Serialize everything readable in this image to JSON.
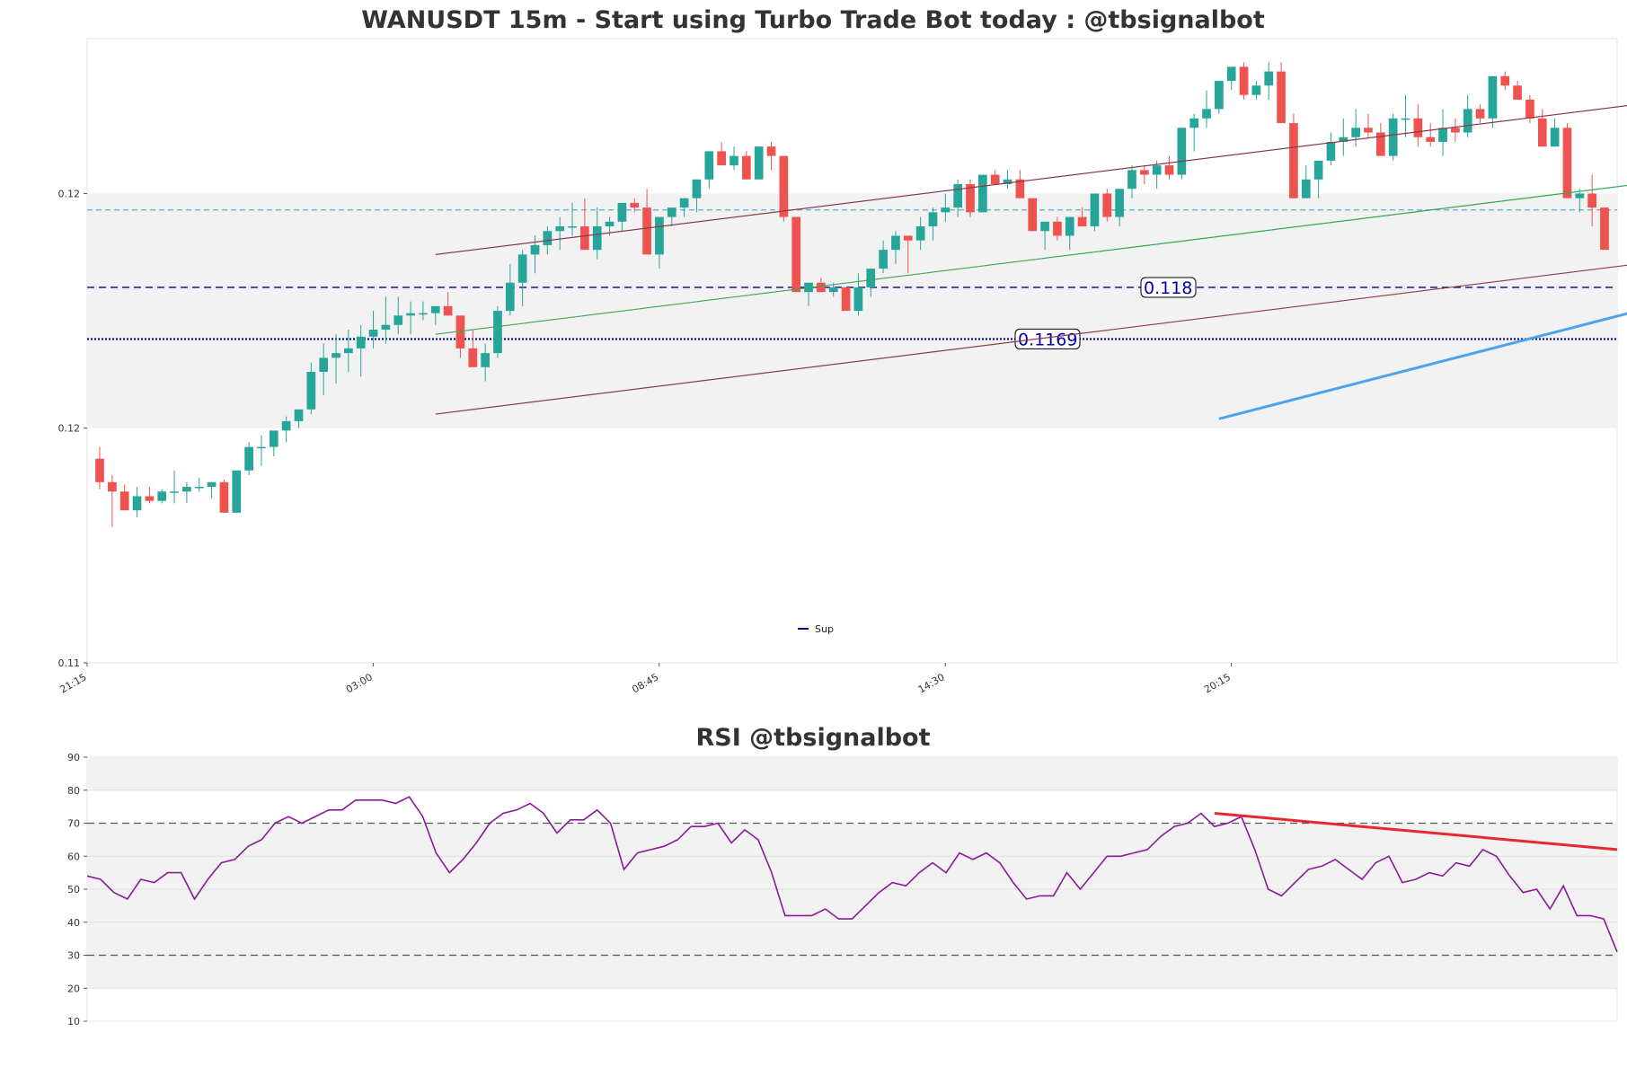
{
  "colors": {
    "bull": "#26a69a",
    "bear": "#ef5350",
    "channel": "#8b3a4a",
    "mid_line": "#3aa655",
    "trend_up": "#4ea3ea",
    "trend_down": "#e8282e",
    "support": "#000099",
    "level_cyan": "#5aaed0",
    "rsi_line": "#8b1a9b",
    "zone_fill": "#f2f2f2"
  },
  "chart_data": [
    {
      "type": "candlestick",
      "title": "WANUSDT 15m - Start using Turbo Trade Bot today : @tbsignalbot",
      "x_tick_labels": [
        "21:15",
        "03:00",
        "08:45",
        "14:30",
        "20:15"
      ],
      "y_tick_labels": [
        "0.12",
        "0.12",
        "0.11"
      ],
      "ylim": [
        0.11,
        0.1233
      ],
      "y_tick_values": [
        0.12,
        0.115,
        0.11
      ],
      "grid": false,
      "shaded_zone": [
        0.115,
        0.12
      ],
      "candles_ohlc": [
        [
          0.11435,
          0.1146,
          0.1137,
          0.11385
        ],
        [
          0.11385,
          0.114,
          0.1129,
          0.11365
        ],
        [
          0.11365,
          0.1138,
          0.1133,
          0.11325
        ],
        [
          0.11325,
          0.11375,
          0.1131,
          0.11355
        ],
        [
          0.11355,
          0.11375,
          0.1134,
          0.11345
        ],
        [
          0.11345,
          0.1137,
          0.1134,
          0.11365
        ],
        [
          0.11365,
          0.1141,
          0.1134,
          0.11365
        ],
        [
          0.11365,
          0.11385,
          0.1134,
          0.11375
        ],
        [
          0.11375,
          0.11395,
          0.11365,
          0.11375
        ],
        [
          0.11375,
          0.11385,
          0.1135,
          0.11385
        ],
        [
          0.11385,
          0.1139,
          0.1132,
          0.1132
        ],
        [
          0.1132,
          0.114,
          0.1132,
          0.1141
        ],
        [
          0.1141,
          0.1147,
          0.114,
          0.1146
        ],
        [
          0.1146,
          0.11485,
          0.1142,
          0.1146
        ],
        [
          0.1146,
          0.1149,
          0.1144,
          0.11495
        ],
        [
          0.11495,
          0.11525,
          0.1147,
          0.11515
        ],
        [
          0.11515,
          0.1154,
          0.115,
          0.1154
        ],
        [
          0.1154,
          0.1164,
          0.1153,
          0.1162
        ],
        [
          0.1162,
          0.1168,
          0.1157,
          0.1165
        ],
        [
          0.1165,
          0.117,
          0.11595,
          0.1166
        ],
        [
          0.1166,
          0.1171,
          0.1162,
          0.1167
        ],
        [
          0.1167,
          0.1172,
          0.1161,
          0.11695
        ],
        [
          0.11695,
          0.1175,
          0.1167,
          0.1171
        ],
        [
          0.1171,
          0.1178,
          0.1168,
          0.1172
        ],
        [
          0.1172,
          0.1178,
          0.117,
          0.1174
        ],
        [
          0.1174,
          0.1177,
          0.117,
          0.11745
        ],
        [
          0.11745,
          0.1177,
          0.1173,
          0.11745
        ],
        [
          0.11745,
          0.1176,
          0.1172,
          0.1176
        ],
        [
          0.1176,
          0.1179,
          0.1174,
          0.1174
        ],
        [
          0.1174,
          0.1174,
          0.1165,
          0.1167
        ],
        [
          0.1167,
          0.1171,
          0.1164,
          0.1163
        ],
        [
          0.1163,
          0.1168,
          0.116,
          0.1166
        ],
        [
          0.1166,
          0.1176,
          0.1165,
          0.1175
        ],
        [
          0.1175,
          0.1185,
          0.1174,
          0.1181
        ],
        [
          0.1181,
          0.1188,
          0.1176,
          0.1187
        ],
        [
          0.1187,
          0.1191,
          0.1183,
          0.1189
        ],
        [
          0.1189,
          0.1193,
          0.1187,
          0.1192
        ],
        [
          0.1192,
          0.1195,
          0.1188,
          0.1193
        ],
        [
          0.1193,
          0.1198,
          0.1191,
          0.1193
        ],
        [
          0.1193,
          0.1199,
          0.1189,
          0.1188
        ],
        [
          0.1188,
          0.1197,
          0.1186,
          0.1193
        ],
        [
          0.1193,
          0.1195,
          0.1191,
          0.1194
        ],
        [
          0.1194,
          0.1197,
          0.1192,
          0.1198
        ],
        [
          0.1198,
          0.1199,
          0.1196,
          0.1197
        ],
        [
          0.1197,
          0.1201,
          0.1193,
          0.1187
        ],
        [
          0.1187,
          0.1192,
          0.1184,
          0.1195
        ],
        [
          0.1195,
          0.1197,
          0.1193,
          0.1197
        ],
        [
          0.1197,
          0.1199,
          0.1195,
          0.1199
        ],
        [
          0.1199,
          0.1201,
          0.1196,
          0.1203
        ],
        [
          0.1203,
          0.1209,
          0.1201,
          0.1209
        ],
        [
          0.1209,
          0.1211,
          0.1206,
          0.1206
        ],
        [
          0.1206,
          0.121,
          0.1205,
          0.1208
        ],
        [
          0.1208,
          0.1209,
          0.1203,
          0.1203
        ],
        [
          0.1203,
          0.121,
          0.1203,
          0.121
        ],
        [
          0.121,
          0.1211,
          0.1205,
          0.1208
        ],
        [
          0.1208,
          0.1207,
          0.1194,
          0.1195
        ],
        [
          0.1195,
          0.1195,
          0.1183,
          0.1179
        ],
        [
          0.1179,
          0.118,
          0.1176,
          0.1181
        ],
        [
          0.1181,
          0.1182,
          0.1179,
          0.1179
        ],
        [
          0.1179,
          0.1181,
          0.1178,
          0.118
        ],
        [
          0.118,
          0.118,
          0.1176,
          0.1175
        ],
        [
          0.1175,
          0.1183,
          0.1174,
          0.118
        ],
        [
          0.118,
          0.1183,
          0.1178,
          0.1184
        ],
        [
          0.1184,
          0.119,
          0.1183,
          0.1188
        ],
        [
          0.1188,
          0.1192,
          0.1185,
          0.1191
        ],
        [
          0.1191,
          0.1191,
          0.1183,
          0.119
        ],
        [
          0.119,
          0.1195,
          0.1188,
          0.1193
        ],
        [
          0.1193,
          0.1197,
          0.119,
          0.1196
        ],
        [
          0.1196,
          0.12,
          0.1194,
          0.1197
        ],
        [
          0.1197,
          0.1203,
          0.1195,
          0.1202
        ],
        [
          0.1202,
          0.1203,
          0.1195,
          0.1196
        ],
        [
          0.1196,
          0.1204,
          0.1196,
          0.1204
        ],
        [
          0.1204,
          0.1205,
          0.1202,
          0.1202
        ],
        [
          0.1202,
          0.1205,
          0.1201,
          0.1203
        ],
        [
          0.1203,
          0.1205,
          0.1201,
          0.1199
        ],
        [
          0.1199,
          0.1199,
          0.1192,
          0.1192
        ],
        [
          0.1192,
          0.1194,
          0.1188,
          0.1194
        ],
        [
          0.1194,
          0.1195,
          0.119,
          0.1191
        ],
        [
          0.1191,
          0.1195,
          0.1188,
          0.1195
        ],
        [
          0.1195,
          0.1197,
          0.1193,
          0.1193
        ],
        [
          0.1193,
          0.1197,
          0.1192,
          0.12
        ],
        [
          0.12,
          0.1201,
          0.1194,
          0.1195
        ],
        [
          0.1195,
          0.12,
          0.1193,
          0.1201
        ],
        [
          0.1201,
          0.1206,
          0.1199,
          0.1205
        ],
        [
          0.1205,
          0.1206,
          0.1202,
          0.1204
        ],
        [
          0.1204,
          0.1207,
          0.1201,
          0.1206
        ],
        [
          0.1206,
          0.1208,
          0.1203,
          0.1204
        ],
        [
          0.1204,
          0.1214,
          0.1203,
          0.1214
        ],
        [
          0.1214,
          0.1217,
          0.1209,
          0.1216
        ],
        [
          0.1216,
          0.1222,
          0.1214,
          0.1218
        ],
        [
          0.1218,
          0.1223,
          0.1217,
          0.1224
        ],
        [
          0.1224,
          0.1227,
          0.1222,
          0.1227
        ],
        [
          0.1227,
          0.1228,
          0.122,
          0.1221
        ],
        [
          0.1221,
          0.1224,
          0.122,
          0.1223
        ],
        [
          0.1223,
          0.1228,
          0.122,
          0.1226
        ],
        [
          0.1226,
          0.1228,
          0.122,
          0.1215
        ],
        [
          0.1215,
          0.1217,
          0.1199,
          0.1199
        ],
        [
          0.1199,
          0.1206,
          0.1199,
          0.1203
        ],
        [
          0.1203,
          0.1206,
          0.1199,
          0.1207
        ],
        [
          0.1207,
          0.1213,
          0.1206,
          0.1211
        ],
        [
          0.1211,
          0.1216,
          0.1208,
          0.1212
        ],
        [
          0.1212,
          0.1218,
          0.121,
          0.1214
        ],
        [
          0.1214,
          0.1217,
          0.1212,
          0.1213
        ],
        [
          0.1213,
          0.1215,
          0.1211,
          0.1208
        ],
        [
          0.1208,
          0.1217,
          0.1207,
          0.1216
        ],
        [
          0.1216,
          0.1221,
          0.1212,
          0.1216
        ],
        [
          0.1216,
          0.1219,
          0.121,
          0.1212
        ],
        [
          0.1212,
          0.1215,
          0.121,
          0.1211
        ],
        [
          0.1211,
          0.1218,
          0.1208,
          0.1214
        ],
        [
          0.1214,
          0.1216,
          0.1211,
          0.1213
        ],
        [
          0.1213,
          0.1221,
          0.1212,
          0.1218
        ],
        [
          0.1218,
          0.1219,
          0.1215,
          0.1216
        ],
        [
          0.1216,
          0.1224,
          0.1214,
          0.1225
        ],
        [
          0.1225,
          0.1226,
          0.1222,
          0.1223
        ],
        [
          0.1223,
          0.1224,
          0.122,
          0.122
        ],
        [
          0.122,
          0.1221,
          0.1215,
          0.1216
        ],
        [
          0.1216,
          0.1218,
          0.1212,
          0.121
        ],
        [
          0.121,
          0.1216,
          0.121,
          0.1214
        ],
        [
          0.1214,
          0.1215,
          0.1201,
          0.1199
        ],
        [
          0.1199,
          0.1201,
          0.1196,
          0.12
        ],
        [
          0.12,
          0.1204,
          0.1193,
          0.1197
        ],
        [
          0.1197,
          0.1194,
          0.1188,
          0.1188
        ]
      ],
      "lines": [
        {
          "name": "upper-channel",
          "from": [
            27,
            0.1187
          ],
          "to": [
            172,
            0.1235
          ]
        },
        {
          "name": "lower-channel",
          "from": [
            27,
            0.1153
          ],
          "to": [
            172,
            0.1201
          ]
        },
        {
          "name": "mid-line",
          "from": [
            27,
            0.117
          ],
          "to": [
            172,
            0.1218
          ]
        },
        {
          "name": "trend-up",
          "from": [
            90,
            0.1152
          ],
          "to": [
            172,
            0.1208
          ]
        },
        {
          "name": "trend-down",
          "from": [
            136,
            0.1228
          ],
          "to": [
            172,
            0.1217
          ]
        }
      ],
      "levels": [
        {
          "value": 0.118,
          "label": "0.118",
          "label_pos": "center-right",
          "style": "dashed"
        },
        {
          "value": 0.1169,
          "label": "0.1169",
          "label_pos": "center",
          "style": "dotted"
        },
        {
          "value": 0.11965,
          "label": "",
          "style": "dashed-cyan"
        }
      ],
      "legend": {
        "entries": [
          "Sup"
        ],
        "placement": "lower-center"
      }
    },
    {
      "type": "line",
      "title": "RSI @tbsignalbot",
      "ylim": [
        10,
        90
      ],
      "y_tick_labels": [
        "90",
        "80",
        "70",
        "60",
        "50",
        "40",
        "30",
        "20",
        "10"
      ],
      "y_tick_values": [
        90,
        80,
        70,
        60,
        50,
        40,
        30,
        20,
        10
      ],
      "reference_lines": [
        70,
        30
      ],
      "shaded_bands": [
        [
          20,
          30
        ],
        [
          30,
          70
        ],
        [
          80,
          90
        ]
      ],
      "series": [
        {
          "values": [
            54,
            53,
            49,
            47,
            53,
            52,
            55,
            55,
            47,
            53,
            58,
            59,
            63,
            65,
            70,
            72,
            70,
            72,
            74,
            74,
            77,
            77,
            77,
            76,
            78,
            72,
            61,
            55,
            59,
            64,
            70,
            73,
            74,
            76,
            73,
            67,
            71,
            71,
            74,
            70,
            56,
            61,
            62,
            63,
            65,
            69,
            69,
            70,
            64,
            68,
            65,
            55,
            42,
            42,
            42,
            44,
            41,
            41,
            45,
            49,
            52,
            51,
            55,
            58,
            55,
            61,
            59,
            61,
            58,
            52,
            47,
            48,
            48,
            55,
            50,
            55,
            60,
            60,
            61,
            62,
            66,
            69,
            70,
            73,
            69,
            70,
            72,
            62,
            50,
            48,
            52,
            56,
            57,
            59,
            56,
            53,
            58,
            60,
            52,
            53,
            55,
            54,
            58,
            57,
            62,
            60,
            54,
            49,
            50,
            44,
            51,
            42,
            42,
            41,
            31
          ]
        }
      ],
      "trend_line": {
        "from": [
          84,
          73
        ],
        "to": [
          114,
          62
        ]
      }
    }
  ]
}
